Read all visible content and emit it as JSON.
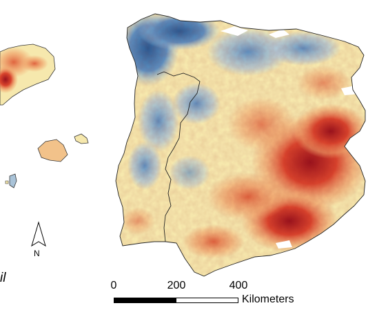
{
  "north_arrow": {
    "letter": "N"
  },
  "panel": {
    "label": "il"
  },
  "scale_bar": {
    "ticks": [
      "0",
      "200",
      "400"
    ],
    "unit": "Kilometers"
  },
  "colors": {
    "dark_blue": "#2b5b93",
    "blue": "#5e8fbf",
    "light_blue": "#a9c3d8",
    "cream": "#f6e8ad",
    "orange": "#f0a36b",
    "red": "#d9442d",
    "dark_red": "#99131d",
    "border": "#333333",
    "water": "#ffffff"
  }
}
